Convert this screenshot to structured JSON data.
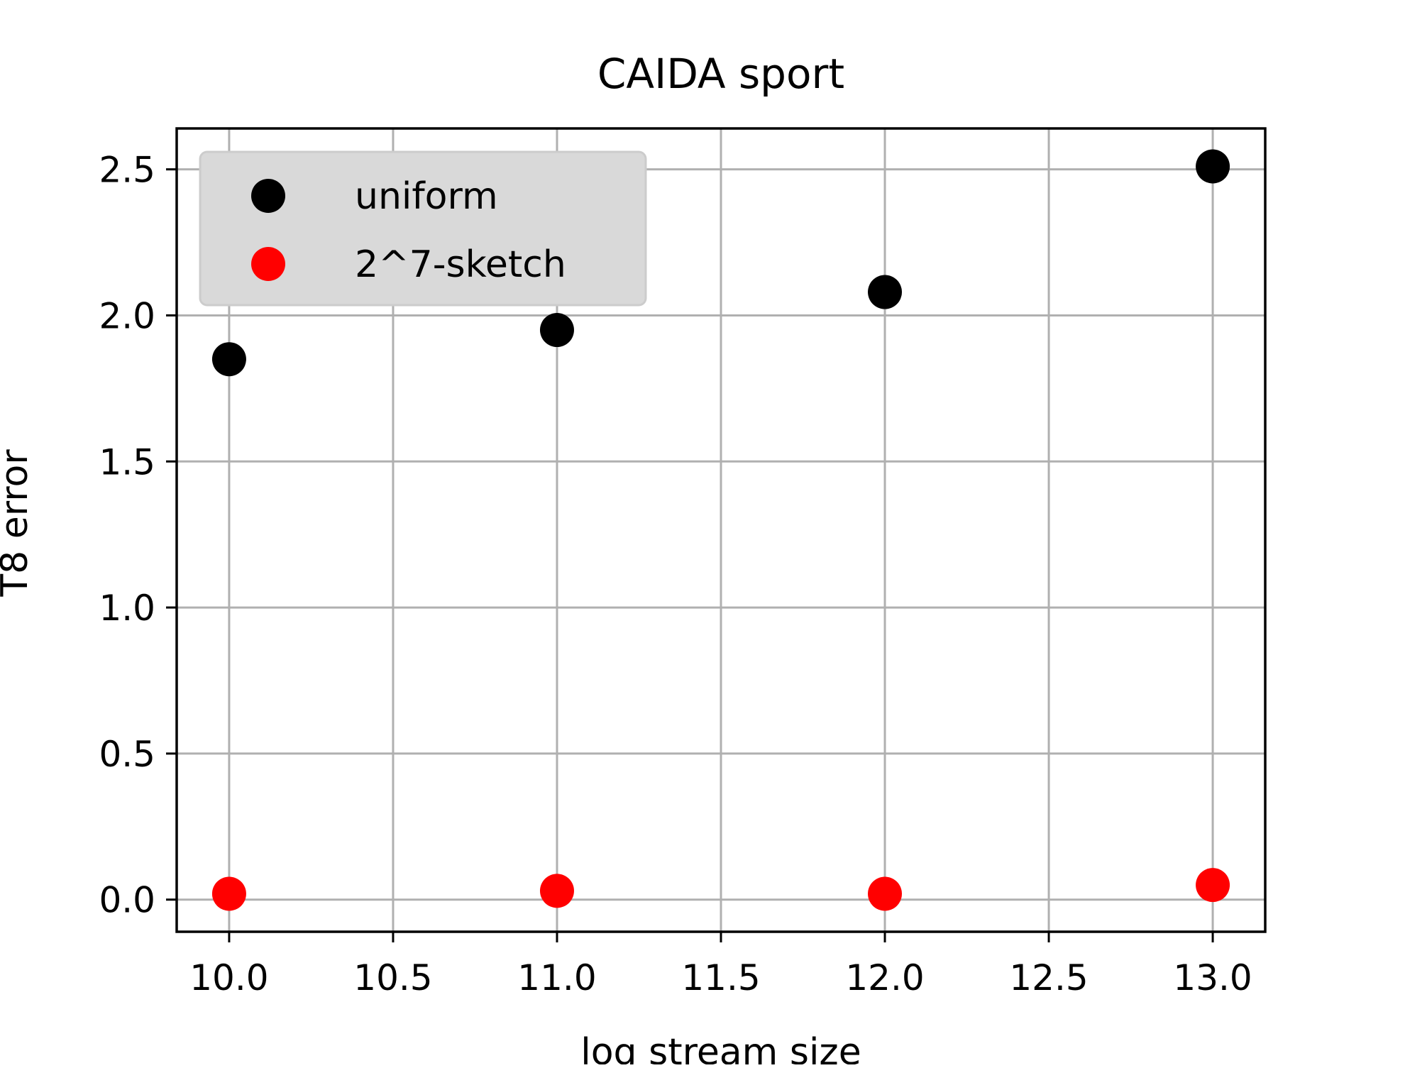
{
  "chart_data": {
    "type": "scatter",
    "title": "CAIDA sport",
    "xlabel": "log stream size",
    "ylabel": "T8 error",
    "xlim": [
      9.84,
      13.16
    ],
    "ylim": [
      -0.11,
      2.64
    ],
    "xticks": [
      10.0,
      10.5,
      11.0,
      11.5,
      12.0,
      12.5,
      13.0
    ],
    "xtick_labels": [
      "10.0",
      "10.5",
      "11.0",
      "11.5",
      "12.0",
      "12.5",
      "13.0"
    ],
    "yticks": [
      0.0,
      0.5,
      1.0,
      1.5,
      2.0,
      2.5
    ],
    "ytick_labels": [
      "0.0",
      "0.5",
      "1.0",
      "1.5",
      "2.0",
      "2.5"
    ],
    "grid": true,
    "legend_position": "upper-left",
    "series": [
      {
        "name": "uniform",
        "color": "#000000",
        "x": [
          10,
          11,
          12,
          13
        ],
        "y": [
          1.85,
          1.95,
          2.08,
          2.51
        ]
      },
      {
        "name": "2^7-sketch",
        "color": "#ff0000",
        "x": [
          10,
          11,
          12,
          13
        ],
        "y": [
          0.02,
          0.03,
          0.02,
          0.05
        ]
      }
    ]
  }
}
